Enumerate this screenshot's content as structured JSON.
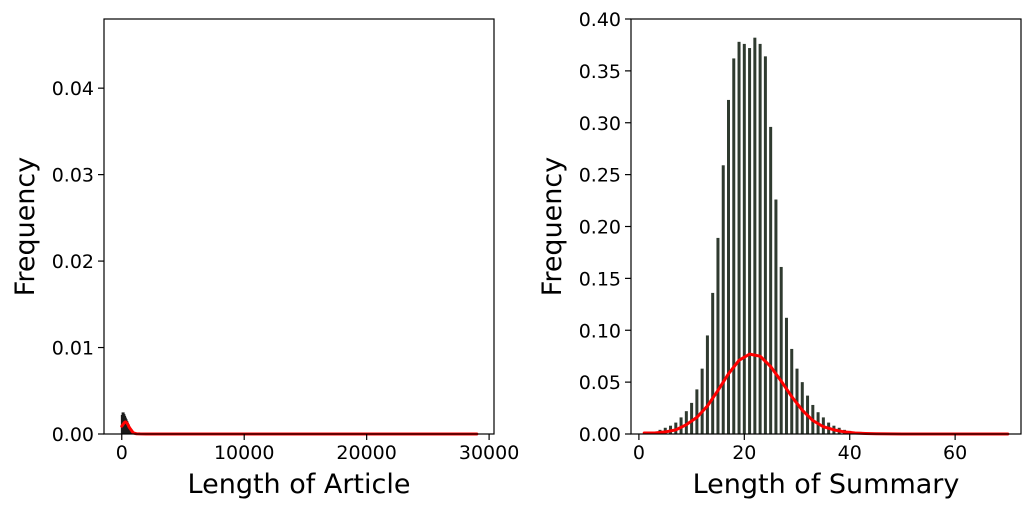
{
  "chart_data": [
    {
      "type": "bar",
      "xlabel": "Length of Article",
      "ylabel": "Frequency",
      "xlim": [
        -1450,
        30400
      ],
      "ylim": [
        0,
        0.048
      ],
      "xticks": [
        0,
        10000,
        20000,
        30000
      ],
      "xtick_labels": [
        "0",
        "10000",
        "20000",
        "30000"
      ],
      "yticks": [
        0.0,
        0.01,
        0.02,
        0.03,
        0.04
      ],
      "ytick_labels": [
        "0.00",
        "0.01",
        "0.02",
        "0.03",
        "0.04"
      ],
      "grid": false,
      "bar_color": "#1a1a1a",
      "curve_color": "#ff0000",
      "histogram": {
        "x": [
          50,
          110,
          170,
          230,
          290,
          350,
          410,
          470,
          530,
          590,
          650,
          710,
          770,
          830,
          890,
          950,
          1010,
          1070,
          1130,
          1190
        ],
        "values": [
          0.0022,
          0.0025,
          0.0023,
          0.0021,
          0.0019,
          0.0017,
          0.0015,
          0.0013,
          0.0011,
          0.0009,
          0.0007,
          0.0005,
          0.0004,
          0.0003,
          0.0002,
          0.00015,
          0.0001,
          8e-05,
          5e-05,
          3e-05
        ]
      },
      "curve": {
        "x": [
          0,
          100,
          200,
          300,
          400,
          500,
          600,
          700,
          800,
          900,
          1000,
          1200,
          1500,
          2000,
          3000,
          5000,
          10000,
          20000,
          29000
        ],
        "values": [
          0.0009,
          0.0011,
          0.0013,
          0.0014,
          0.0013,
          0.0011,
          0.0008,
          0.0006,
          0.0004,
          0.0002,
          0.0001,
          3e-05,
          1e-05,
          0,
          0,
          0,
          0,
          0,
          0
        ]
      }
    },
    {
      "type": "bar",
      "xlabel": "Length of Summary",
      "ylabel": "Frequency",
      "xlim": [
        -1.5,
        72.5
      ],
      "ylim": [
        0,
        0.4
      ],
      "xticks": [
        0,
        20,
        40,
        60
      ],
      "xtick_labels": [
        "0",
        "20",
        "40",
        "60"
      ],
      "yticks": [
        0.0,
        0.05,
        0.1,
        0.15,
        0.2,
        0.25,
        0.3,
        0.35,
        0.4
      ],
      "ytick_labels": [
        "0.00",
        "0.05",
        "0.10",
        "0.15",
        "0.20",
        "0.25",
        "0.30",
        "0.35",
        "0.40"
      ],
      "grid": false,
      "bar_color": "#2f3a2f",
      "curve_color": "#ff0000",
      "histogram": {
        "x": [
          4,
          5,
          6,
          7,
          8,
          9,
          10,
          11,
          12,
          13,
          14,
          15,
          16,
          17,
          18,
          19,
          20,
          21,
          22,
          23,
          24,
          25,
          26,
          27,
          28,
          29,
          30,
          31,
          32,
          33,
          34,
          35,
          36,
          37,
          38,
          39,
          40,
          41,
          42,
          43,
          44,
          45
        ],
        "values": [
          0.004,
          0.006,
          0.008,
          0.011,
          0.016,
          0.022,
          0.03,
          0.043,
          0.063,
          0.095,
          0.136,
          0.189,
          0.259,
          0.322,
          0.362,
          0.378,
          0.376,
          0.372,
          0.382,
          0.376,
          0.364,
          0.296,
          0.226,
          0.161,
          0.112,
          0.082,
          0.063,
          0.05,
          0.037,
          0.028,
          0.021,
          0.016,
          0.011,
          0.008,
          0.006,
          0.004,
          0.003,
          0.002,
          0.002,
          0.001,
          0.001,
          0.001
        ]
      },
      "curve": {
        "x": [
          1,
          3,
          5,
          7,
          9,
          11,
          13,
          15,
          17,
          19,
          21,
          23,
          25,
          27,
          29,
          31,
          33,
          35,
          37,
          39,
          41,
          43,
          45,
          50,
          55,
          60,
          65,
          70
        ],
        "values": [
          0.001,
          0.001,
          0.002,
          0.004,
          0.009,
          0.016,
          0.027,
          0.042,
          0.058,
          0.071,
          0.077,
          0.075,
          0.065,
          0.051,
          0.036,
          0.023,
          0.013,
          0.007,
          0.004,
          0.002,
          0.001,
          0.0005,
          0.0002,
          0,
          0,
          0,
          0,
          0
        ]
      }
    }
  ]
}
